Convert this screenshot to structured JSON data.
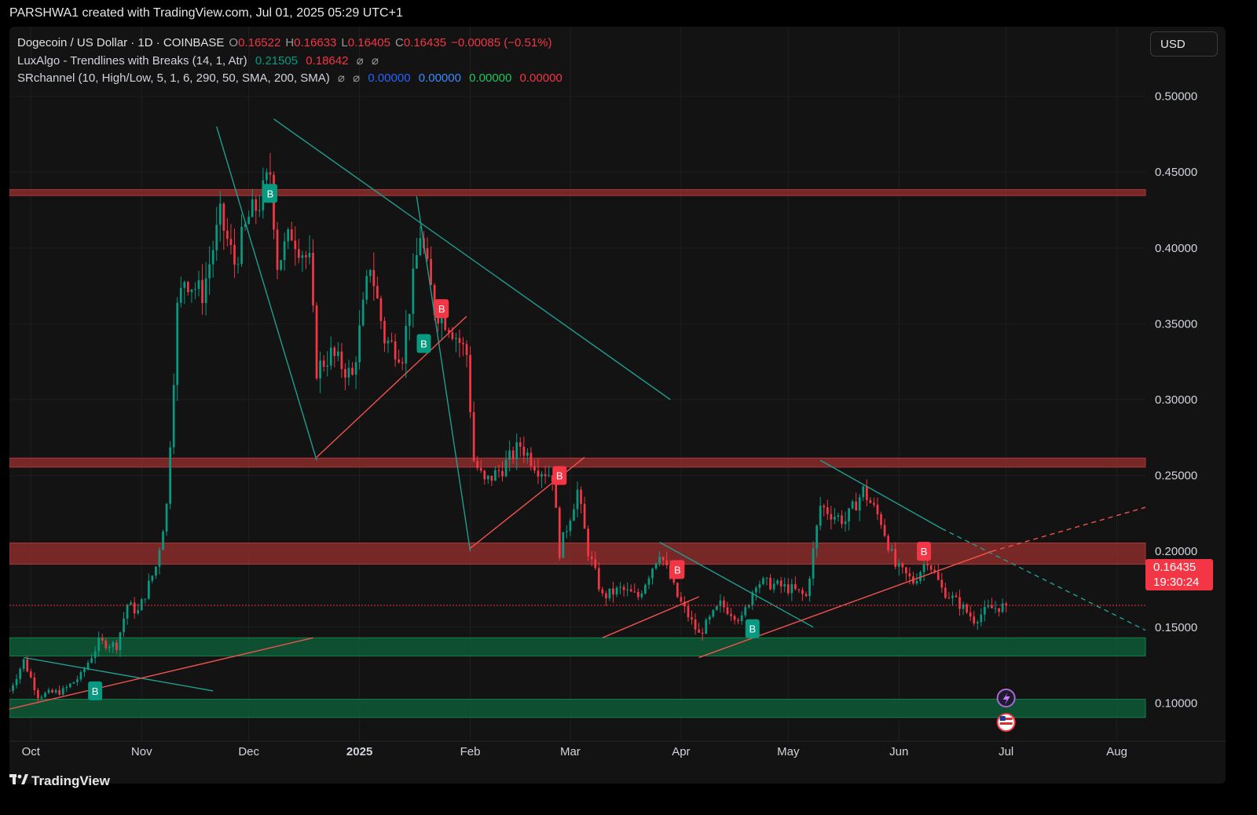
{
  "header": {
    "text": "PARSHWA1 created with TradingView.com, Jul 01, 2025 05:29 UTC+1"
  },
  "legend": {
    "title": "Dogecoin / US Dollar · 1D · COINBASE",
    "o_label": "O",
    "o_value": "0.16522",
    "h_label": "H",
    "h_value": "0.16633",
    "l_label": "L",
    "l_value": "0.16405",
    "c_label": "C",
    "c_value": "0.16435",
    "change": "−0.00085 (−0.51%)",
    "indicator1": "LuxAlgo - Trendlines with Breaks (14, 1, Atr)",
    "indicator1_v1": "0.21505",
    "indicator1_v2": "0.18642",
    "indicator2": "SRchannel (10, High/Low, 5, 1, 6, 290, 50, SMA, 200, SMA)",
    "indicator2_v1": "0.00000",
    "indicator2_v2": "0.00000",
    "indicator2_v3": "0.00000",
    "indicator2_v4": "0.00000",
    "hidden_icon": "⌀"
  },
  "currency": "USD",
  "price_tag": {
    "price": "0.16435",
    "countdown": "19:30:24"
  },
  "footer": {
    "brand": "TradingView",
    "logo_icon": "tradingview-logo"
  },
  "colors": {
    "up": "#089981",
    "down": "#f23645",
    "resistance": "#8b2b2b",
    "support": "#0f5a37",
    "background": "#131313"
  },
  "chart_data": {
    "type": "candlestick",
    "symbol": "DOGE/USD",
    "ylim": [
      0.08,
      0.52
    ],
    "y_ticks": [
      {
        "value": 0.5,
        "label": "0.50000"
      },
      {
        "value": 0.45,
        "label": "0.45000"
      },
      {
        "value": 0.4,
        "label": "0.40000"
      },
      {
        "value": 0.35,
        "label": "0.35000"
      },
      {
        "value": 0.3,
        "label": "0.30000"
      },
      {
        "value": 0.25,
        "label": "0.25000"
      },
      {
        "value": 0.2,
        "label": "0.20000"
      },
      {
        "value": 0.15,
        "label": "0.15000"
      },
      {
        "value": 0.1,
        "label": "0.10000"
      }
    ],
    "x_ticks": [
      {
        "date": "2024-10-01",
        "label": "Oct"
      },
      {
        "date": "2024-11-01",
        "label": "Nov"
      },
      {
        "date": "2024-12-01",
        "label": "Dec"
      },
      {
        "date": "2025-01-01",
        "label": "2025"
      },
      {
        "date": "2025-02-01",
        "label": "Feb"
      },
      {
        "date": "2025-03-01",
        "label": "Mar"
      },
      {
        "date": "2025-04-01",
        "label": "Apr"
      },
      {
        "date": "2025-05-01",
        "label": "May"
      },
      {
        "date": "2025-06-01",
        "label": "Jun"
      },
      {
        "date": "2025-07-01",
        "label": "Jul"
      },
      {
        "date": "2025-08-01",
        "label": "Aug"
      }
    ],
    "x_range": [
      "2024-09-25",
      "2025-08-09"
    ],
    "anchors": [
      [
        "2024-09-25",
        0.108
      ],
      [
        "2024-09-29",
        0.128
      ],
      [
        "2024-10-03",
        0.105
      ],
      [
        "2024-10-10",
        0.108
      ],
      [
        "2024-10-15",
        0.118
      ],
      [
        "2024-10-20",
        0.14
      ],
      [
        "2024-10-25",
        0.138
      ],
      [
        "2024-10-28",
        0.165
      ],
      [
        "2024-10-31",
        0.16
      ],
      [
        "2024-11-05",
        0.19
      ],
      [
        "2024-11-08",
        0.23
      ],
      [
        "2024-11-11",
        0.36
      ],
      [
        "2024-11-13",
        0.38
      ],
      [
        "2024-11-18",
        0.37
      ],
      [
        "2024-11-23",
        0.42
      ],
      [
        "2024-11-27",
        0.39
      ],
      [
        "2024-12-01",
        0.42
      ],
      [
        "2024-12-04",
        0.43
      ],
      [
        "2024-12-07",
        0.45
      ],
      [
        "2024-12-09",
        0.39
      ],
      [
        "2024-12-13",
        0.41
      ],
      [
        "2024-12-18",
        0.39
      ],
      [
        "2024-12-20",
        0.32
      ],
      [
        "2024-12-24",
        0.33
      ],
      [
        "2024-12-30",
        0.315
      ],
      [
        "2025-01-04",
        0.39
      ],
      [
        "2025-01-08",
        0.34
      ],
      [
        "2025-01-13",
        0.33
      ],
      [
        "2025-01-18",
        0.41
      ],
      [
        "2025-01-22",
        0.36
      ],
      [
        "2025-01-26",
        0.35
      ],
      [
        "2025-01-31",
        0.33
      ],
      [
        "2025-02-02",
        0.26
      ],
      [
        "2025-02-05",
        0.245
      ],
      [
        "2025-02-10",
        0.255
      ],
      [
        "2025-02-15",
        0.27
      ],
      [
        "2025-02-20",
        0.255
      ],
      [
        "2025-02-24",
        0.25
      ],
      [
        "2025-02-26",
        0.2
      ],
      [
        "2025-03-03",
        0.24
      ],
      [
        "2025-03-06",
        0.2
      ],
      [
        "2025-03-10",
        0.17
      ],
      [
        "2025-03-15",
        0.175
      ],
      [
        "2025-03-20",
        0.17
      ],
      [
        "2025-03-26",
        0.2
      ],
      [
        "2025-03-31",
        0.17
      ],
      [
        "2025-04-06",
        0.145
      ],
      [
        "2025-04-12",
        0.165
      ],
      [
        "2025-04-18",
        0.155
      ],
      [
        "2025-04-22",
        0.18
      ],
      [
        "2025-04-27",
        0.178
      ],
      [
        "2025-05-02",
        0.175
      ],
      [
        "2025-05-06",
        0.17
      ],
      [
        "2025-05-10",
        0.23
      ],
      [
        "2025-05-13",
        0.225
      ],
      [
        "2025-05-17",
        0.22
      ],
      [
        "2025-05-22",
        0.24
      ],
      [
        "2025-05-27",
        0.22
      ],
      [
        "2025-05-31",
        0.19
      ],
      [
        "2025-06-05",
        0.18
      ],
      [
        "2025-06-09",
        0.195
      ],
      [
        "2025-06-13",
        0.175
      ],
      [
        "2025-06-18",
        0.165
      ],
      [
        "2025-06-22",
        0.155
      ],
      [
        "2025-06-26",
        0.162
      ],
      [
        "2025-07-01",
        0.164
      ]
    ],
    "sr_zones": [
      {
        "kind": "resistance",
        "low": 0.4345,
        "high": 0.4385
      },
      {
        "kind": "resistance",
        "low": 0.2555,
        "high": 0.2615
      },
      {
        "kind": "resistance",
        "low": 0.1915,
        "high": 0.2055
      },
      {
        "kind": "support",
        "low": 0.131,
        "high": 0.143
      },
      {
        "kind": "support",
        "low": 0.0905,
        "high": 0.1025
      }
    ],
    "current_price": 0.16435,
    "trendlines": [
      {
        "color": "teal",
        "from": [
          "2024-11-22",
          0.48
        ],
        "to": [
          "2024-12-20",
          0.26
        ]
      },
      {
        "color": "teal",
        "from": [
          "2024-12-08",
          0.485
        ],
        "to": [
          "2025-03-29",
          0.3
        ]
      },
      {
        "color": "teal",
        "from": [
          "2025-01-17",
          0.434
        ],
        "to": [
          "2025-02-01",
          0.2
        ]
      },
      {
        "color": "teal",
        "from": [
          "2025-03-26",
          0.206
        ],
        "to": [
          "2025-05-08",
          0.15
        ]
      },
      {
        "color": "teal",
        "from": [
          "2025-05-10",
          0.26
        ],
        "to": [
          "2025-06-13",
          0.215
        ]
      },
      {
        "color": "teal",
        "dashed": true,
        "from": [
          "2025-06-13",
          0.215
        ],
        "to": [
          "2025-08-09",
          0.148
        ]
      },
      {
        "color": "teal",
        "from": [
          "2024-09-29",
          0.13
        ],
        "to": [
          "2024-11-21",
          0.108
        ]
      },
      {
        "color": "red",
        "from": [
          "2024-12-20",
          0.262
        ],
        "to": [
          "2025-01-31",
          0.355
        ]
      },
      {
        "color": "red",
        "from": [
          "2025-02-01",
          0.202
        ],
        "to": [
          "2025-03-05",
          0.262
        ]
      },
      {
        "color": "red",
        "from": [
          "2025-03-10",
          0.143
        ],
        "to": [
          "2025-04-06",
          0.17
        ]
      },
      {
        "color": "red",
        "from": [
          "2025-04-06",
          0.13
        ],
        "to": [
          "2025-06-27",
          0.2
        ]
      },
      {
        "color": "red",
        "dashed": true,
        "from": [
          "2025-06-27",
          0.2
        ],
        "to": [
          "2025-08-09",
          0.229
        ]
      },
      {
        "color": "red",
        "from": [
          "2024-09-25",
          0.096
        ],
        "to": [
          "2024-12-19",
          0.143
        ]
      }
    ],
    "break_labels": [
      {
        "date": "2024-10-19",
        "price": 0.108,
        "label": "B",
        "color": "teal"
      },
      {
        "date": "2024-12-07",
        "price": 0.436,
        "label": "B",
        "color": "teal"
      },
      {
        "date": "2025-01-24",
        "price": 0.36,
        "label": "B",
        "color": "red"
      },
      {
        "date": "2025-01-19",
        "price": 0.337,
        "label": "B",
        "color": "teal"
      },
      {
        "date": "2025-02-26",
        "price": 0.25,
        "label": "B",
        "color": "red"
      },
      {
        "date": "2025-03-31",
        "price": 0.188,
        "label": "B",
        "color": "red"
      },
      {
        "date": "2025-04-21",
        "price": 0.149,
        "label": "B",
        "color": "teal"
      },
      {
        "date": "2025-06-08",
        "price": 0.2,
        "label": "B",
        "color": "red"
      }
    ]
  }
}
